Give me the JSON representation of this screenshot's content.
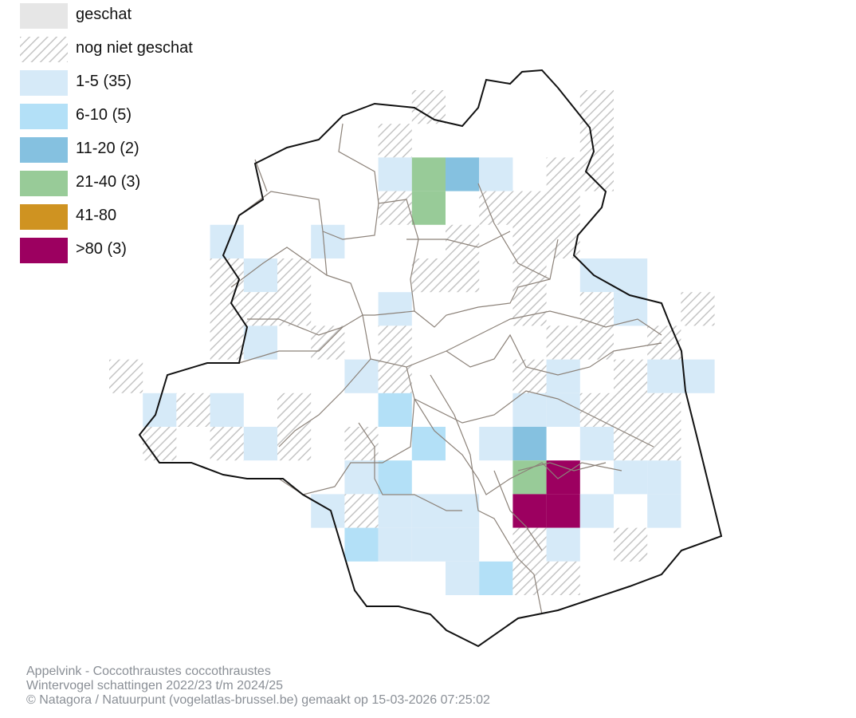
{
  "legend": {
    "items": [
      {
        "label": "geschat",
        "swatch": "estimated-gray",
        "color": "#e6e6e6"
      },
      {
        "label": "nog niet geschat",
        "swatch": "hatched",
        "color": "#c8c8c8"
      },
      {
        "label": "1-5 (35)",
        "swatch": "class-1-5",
        "color": "#d6eaf8"
      },
      {
        "label": "6-10 (5)",
        "swatch": "class-6-10",
        "color": "#b3e0f7"
      },
      {
        "label": "11-20 (2)",
        "swatch": "class-11-20",
        "color": "#85c1e0"
      },
      {
        "label": "21-40 (3)",
        "swatch": "class-21-40",
        "color": "#98cb98"
      },
      {
        "label": "41-80",
        "swatch": "class-41-80",
        "color": "#cf9321"
      },
      {
        "label": ">80 (3)",
        "swatch": "class-80-plus",
        "color": "#9c0060"
      }
    ]
  },
  "footer": {
    "line1": "Appelvink - Coccothraustes coccothraustes",
    "line2": "Wintervogel schattingen 2022/23 t/m 2024/25",
    "line3": "© Natagora / Natuurpunt (vogelatlas-brussel.be) gemaakt op 15-03-2026 07:25:02"
  }
}
